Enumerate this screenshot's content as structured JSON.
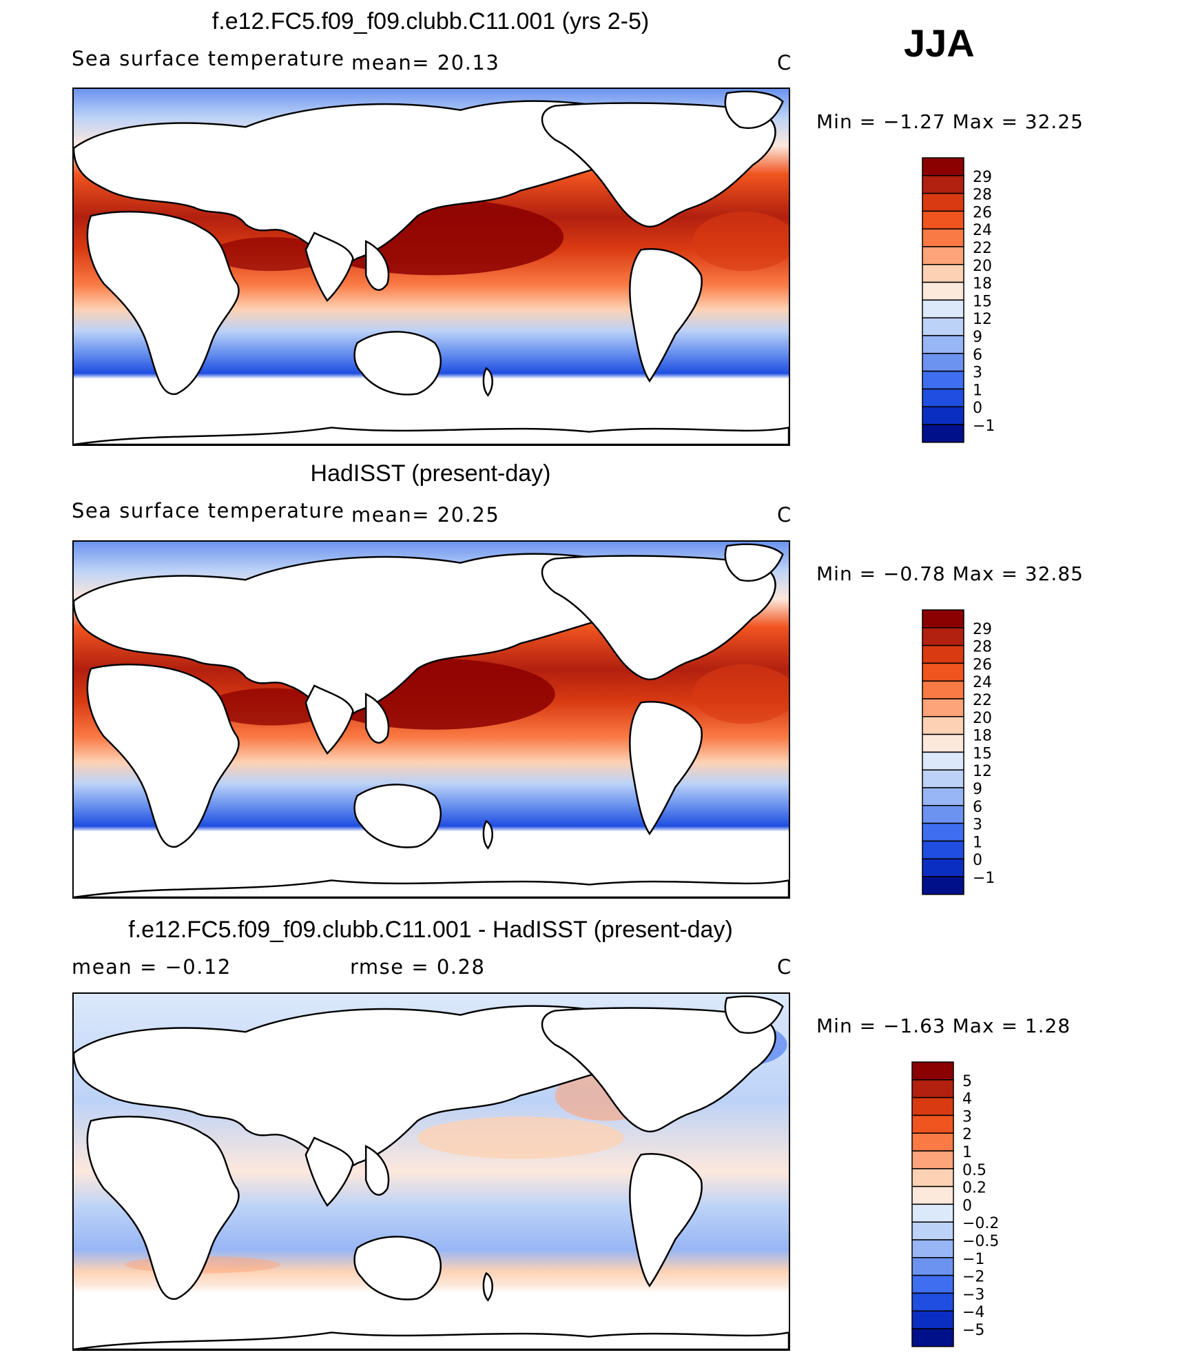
{
  "season": "JJA",
  "panels": [
    {
      "id": "model",
      "title": "f.e12.FC5.f09_f09.clubb.C11.001 (yrs 2-5)",
      "left_label": "Sea surface temperature",
      "stat1": "mean=   20.13",
      "stat2": "",
      "units": "C",
      "minmax": "Min  =    −1.27  Max  =    32.25",
      "colorbar": {
        "levels": [
          "29",
          "28",
          "26",
          "24",
          "22",
          "20",
          "18",
          "15",
          "12",
          "9",
          "6",
          "3",
          "1",
          "0",
          "−1"
        ],
        "colors": [
          "#8b0000",
          "#b2200f",
          "#d93a12",
          "#f0541f",
          "#fa7a45",
          "#fda47a",
          "#fdd2b4",
          "#fde8dc",
          "#dce9fb",
          "#bcd2f7",
          "#98b6f5",
          "#6b93ef",
          "#3f6ff0",
          "#1f4ee0",
          "#0b2ec2",
          "#00108a"
        ]
      }
    },
    {
      "id": "obs",
      "title": "HadISST (present-day)",
      "left_label": "Sea surface temperature",
      "stat1": "mean=   20.25",
      "stat2": "",
      "units": "C",
      "minmax": "Min  =    −0.78  Max  =    32.85",
      "colorbar": {
        "levels": [
          "29",
          "28",
          "26",
          "24",
          "22",
          "20",
          "18",
          "15",
          "12",
          "9",
          "6",
          "3",
          "1",
          "0",
          "−1"
        ],
        "colors": [
          "#8b0000",
          "#b2200f",
          "#d93a12",
          "#f0541f",
          "#fa7a45",
          "#fda47a",
          "#fdd2b4",
          "#fde8dc",
          "#dce9fb",
          "#bcd2f7",
          "#98b6f5",
          "#6b93ef",
          "#3f6ff0",
          "#1f4ee0",
          "#0b2ec2",
          "#00108a"
        ]
      }
    },
    {
      "id": "diff",
      "title": "f.e12.FC5.f09_f09.clubb.C11.001 - HadISST (present-day)",
      "left_label": "mean  =   −0.12",
      "stat1": "rmse  =    0.28",
      "stat2": "",
      "units": "C",
      "minmax": "Min  =    −1.63  Max  =     1.28",
      "colorbar": {
        "levels": [
          "5",
          "4",
          "3",
          "2",
          "1",
          "0.5",
          "0.2",
          "0",
          "−0.2",
          "−0.5",
          "−1",
          "−2",
          "−3",
          "−4",
          "−5"
        ],
        "colors": [
          "#8b0000",
          "#b2200f",
          "#d93a12",
          "#f0541f",
          "#fa7a45",
          "#fda47a",
          "#fdd2b4",
          "#fde8dc",
          "#dce9fb",
          "#bcd2f7",
          "#98b6f5",
          "#6b93ef",
          "#3f6ff0",
          "#1f4ee0",
          "#0b2ec2",
          "#00108a"
        ]
      }
    }
  ]
}
